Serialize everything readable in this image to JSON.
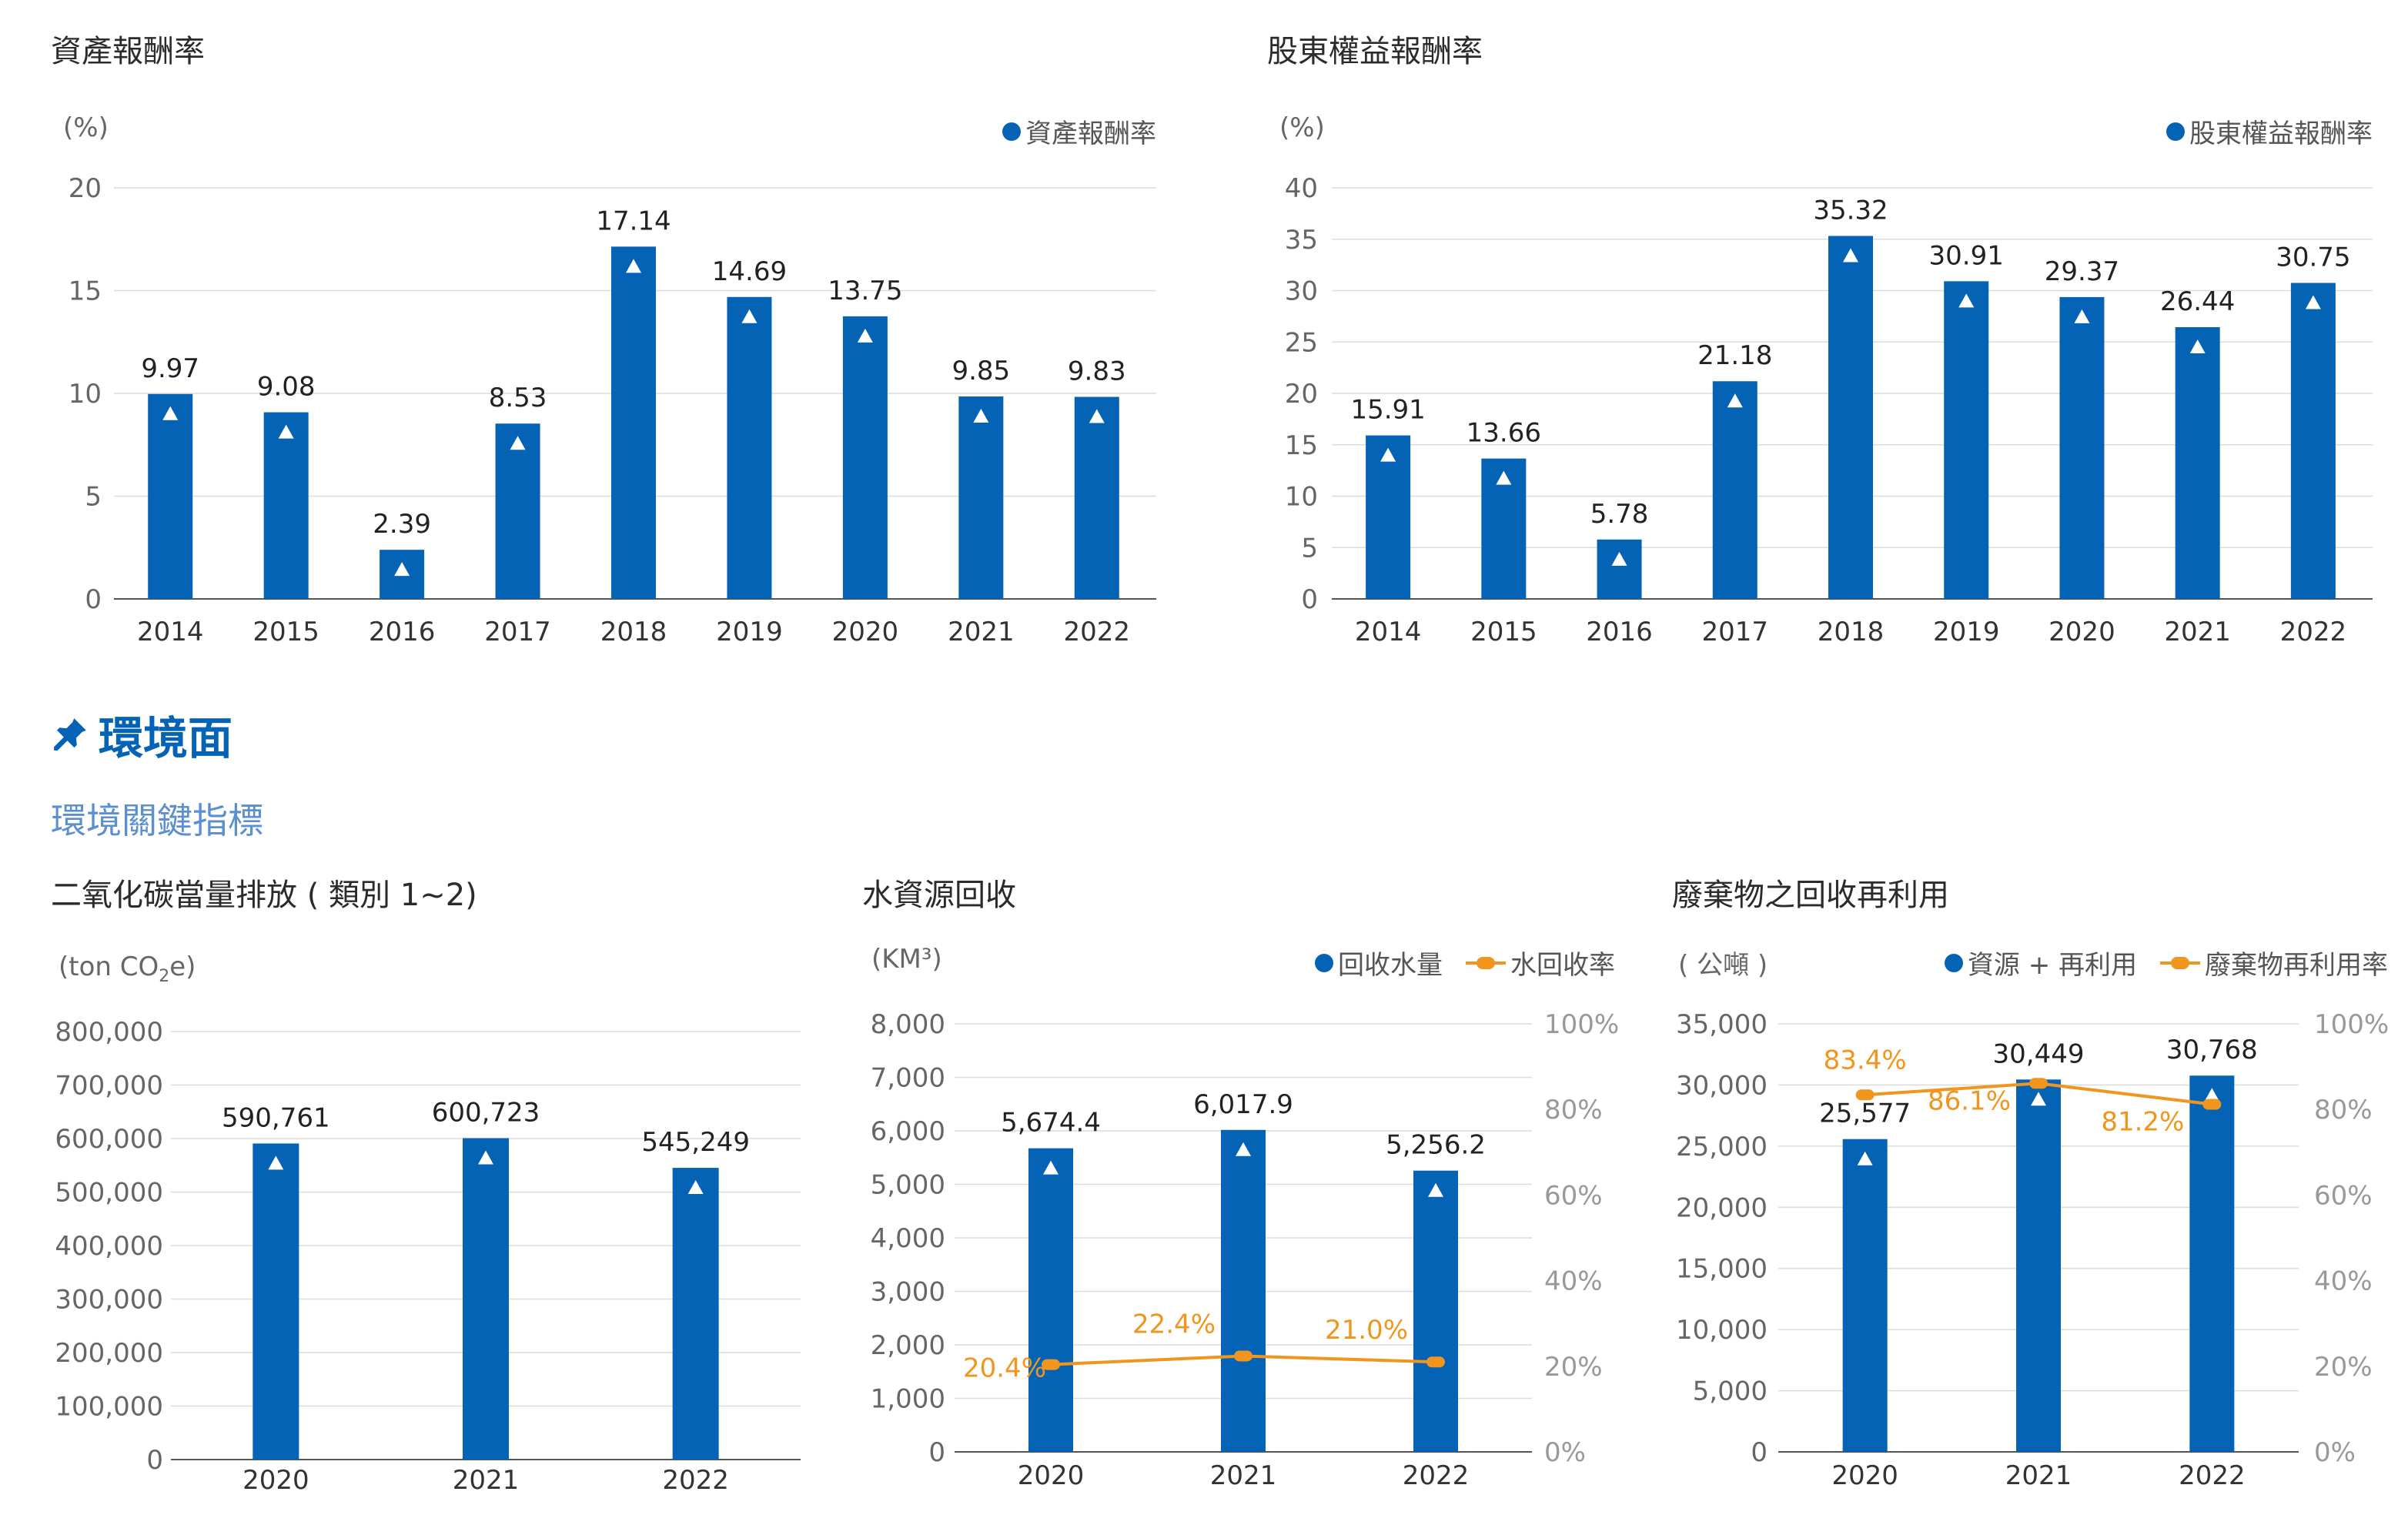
{
  "section": {
    "title": "環境面",
    "subtitle": "環境關鍵指標"
  },
  "colors": {
    "bar": "#0563B5",
    "line": "#F0961E",
    "grid": "#dcdcdc",
    "axis": "#555555"
  },
  "icons": {
    "section": "pushpin-icon",
    "bar_marker": "triangle-up-icon"
  },
  "chart_data": [
    {
      "id": "roa",
      "type": "bar",
      "title": "資產報酬率",
      "unit": "(%)",
      "legend": [
        "資產報酬率"
      ],
      "categories": [
        "2014",
        "2015",
        "2016",
        "2017",
        "2018",
        "2019",
        "2020",
        "2021",
        "2022"
      ],
      "series": [
        {
          "name": "資產報酬率",
          "values": [
            9.97,
            9.08,
            2.39,
            8.53,
            17.14,
            14.69,
            13.75,
            9.85,
            9.83
          ]
        }
      ],
      "value_labels": [
        "9.97",
        "9.08",
        "2.39",
        "8.53",
        "17.14",
        "14.69",
        "13.75",
        "9.85",
        "9.83"
      ],
      "ylim": [
        0,
        20
      ],
      "yticks": [
        0,
        5,
        10,
        15,
        20
      ],
      "ytick_labels": [
        "0",
        "5",
        "10",
        "15",
        "20"
      ],
      "grid": true,
      "legend_position": "top-right"
    },
    {
      "id": "roe",
      "type": "bar",
      "title": "股東權益報酬率",
      "unit": "(%)",
      "legend": [
        "股東權益報酬率"
      ],
      "categories": [
        "2014",
        "2015",
        "2016",
        "2017",
        "2018",
        "2019",
        "2020",
        "2021",
        "2022"
      ],
      "series": [
        {
          "name": "股東權益報酬率",
          "values": [
            15.91,
            13.66,
            5.78,
            21.18,
            35.32,
            30.91,
            29.37,
            26.44,
            30.75
          ]
        }
      ],
      "value_labels": [
        "15.91",
        "13.66",
        "5.78",
        "21.18",
        "35.32",
        "30.91",
        "29.37",
        "26.44",
        "30.75"
      ],
      "ylim": [
        0,
        40
      ],
      "yticks": [
        0,
        5,
        10,
        15,
        20,
        25,
        30,
        35,
        40
      ],
      "ytick_labels": [
        "0",
        "5",
        "10",
        "15",
        "20",
        "25",
        "30",
        "35",
        "40"
      ],
      "grid": true,
      "legend_position": "top-right"
    },
    {
      "id": "co2",
      "type": "bar",
      "title": "二氧化碳當量排放 ( 類別 1~2)",
      "unit_main": "(ton CO",
      "unit_sub": "2",
      "unit_end": "e)",
      "legend": [],
      "categories": [
        "2020",
        "2021",
        "2022"
      ],
      "series": [
        {
          "values": [
            590761,
            600723,
            545249
          ]
        }
      ],
      "value_labels": [
        "590,761",
        "600,723",
        "545,249"
      ],
      "ylim": [
        0,
        800000
      ],
      "yticks": [
        0,
        100000,
        200000,
        300000,
        400000,
        500000,
        600000,
        700000,
        800000
      ],
      "ytick_labels": [
        "0",
        "100,000",
        "200,000",
        "300,000",
        "400,000",
        "500,000",
        "600,000",
        "700,000",
        "800,000"
      ],
      "grid": true
    },
    {
      "id": "water",
      "type": "bar+line",
      "title": "水資源回收",
      "unit": "(KM³)",
      "legend": [
        "回收水量",
        "水回收率"
      ],
      "categories": [
        "2020",
        "2021",
        "2022"
      ],
      "series": [
        {
          "name": "回收水量",
          "values": [
            5674.4,
            6017.9,
            5256.2
          ]
        },
        {
          "name": "水回收率",
          "axis": "right",
          "values": [
            20.4,
            22.4,
            21.0
          ]
        }
      ],
      "value_labels": [
        "5,674.4",
        "6,017.9",
        "5,256.2"
      ],
      "line_labels": [
        "20.4%",
        "22.4%",
        "21.0%"
      ],
      "ylim": [
        0,
        8000
      ],
      "yticks": [
        0,
        1000,
        2000,
        3000,
        4000,
        5000,
        6000,
        7000,
        8000
      ],
      "ytick_labels": [
        "0",
        "1,000",
        "2,000",
        "3,000",
        "4,000",
        "5,000",
        "6,000",
        "7,000",
        "8,000"
      ],
      "y2lim": [
        0,
        100
      ],
      "y2ticks": [
        0,
        20,
        40,
        60,
        80,
        100
      ],
      "y2tick_labels": [
        "0%",
        "20%",
        "40%",
        "60%",
        "80%",
        "100%"
      ],
      "grid": true,
      "legend_position": "top-right"
    },
    {
      "id": "waste",
      "type": "bar+line",
      "title": "廢棄物之回收再利用",
      "unit": "( 公噸 )",
      "legend": [
        "資源 + 再利用",
        "廢棄物再利用率"
      ],
      "categories": [
        "2020",
        "2021",
        "2022"
      ],
      "series": [
        {
          "name": "資源 + 再利用",
          "values": [
            25577,
            30449,
            30768
          ]
        },
        {
          "name": "廢棄物再利用率",
          "axis": "right",
          "values": [
            83.4,
            86.1,
            81.2
          ]
        }
      ],
      "value_labels": [
        "25,577",
        "30,449",
        "30,768"
      ],
      "line_labels": [
        "83.4%",
        "86.1%",
        "81.2%"
      ],
      "ylim": [
        0,
        35000
      ],
      "yticks": [
        0,
        5000,
        10000,
        15000,
        20000,
        25000,
        30000,
        35000
      ],
      "ytick_labels": [
        "0",
        "5,000",
        "10,000",
        "15,000",
        "20,000",
        "25,000",
        "30,000",
        "35,000"
      ],
      "y2lim": [
        0,
        100
      ],
      "y2ticks": [
        0,
        20,
        40,
        60,
        80,
        100
      ],
      "y2tick_labels": [
        "0%",
        "20%",
        "40%",
        "60%",
        "80%",
        "100%"
      ],
      "grid": true,
      "legend_position": "top-right"
    }
  ]
}
